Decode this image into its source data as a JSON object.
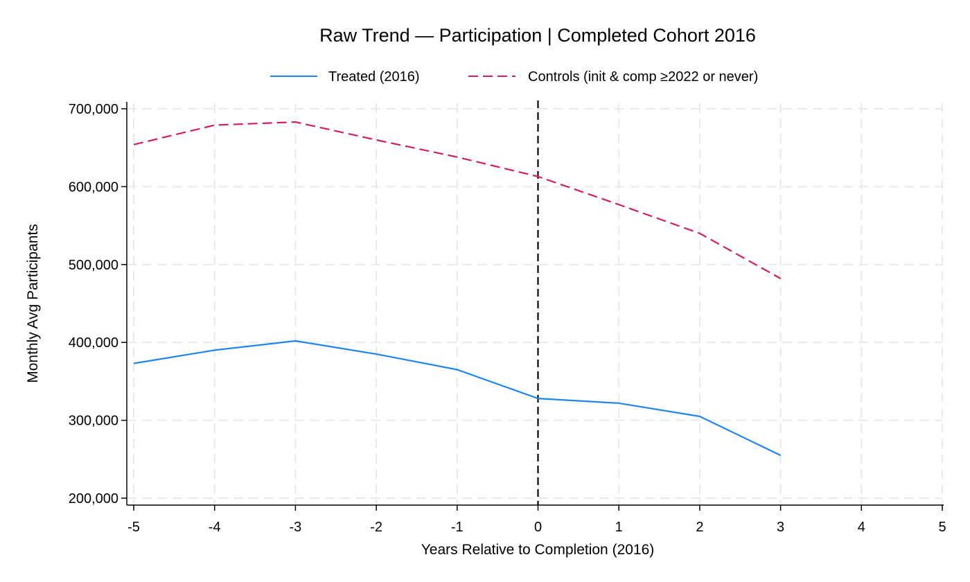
{
  "chart_data": {
    "type": "line",
    "title": "Raw Trend — Participation | Completed Cohort 2016",
    "xlabel": "Years Relative to Completion (2016)",
    "ylabel": "Monthly Avg Participants",
    "xlim": [
      -5,
      5
    ],
    "ylim": [
      200000,
      700000
    ],
    "x_ticks": [
      -5,
      -4,
      -3,
      -2,
      -1,
      0,
      1,
      2,
      3,
      4,
      5
    ],
    "x_tick_labels": [
      "-5",
      "-4",
      "-3",
      "-2",
      "-1",
      "0",
      "1",
      "2",
      "3",
      "4",
      "5"
    ],
    "y_ticks": [
      200000,
      300000,
      400000,
      500000,
      600000,
      700000
    ],
    "y_tick_labels": [
      "200,000",
      "300,000",
      "400,000",
      "500,000",
      "600,000",
      "700,000"
    ],
    "grid": true,
    "legend_position": "top-center",
    "reference_line_x": 0,
    "series": [
      {
        "name": "Treated (2016)",
        "color": "#1f84ec",
        "style": "solid",
        "x": [
          -5,
          -4,
          -3,
          -2,
          -1,
          0,
          1,
          2,
          3
        ],
        "values": [
          373000,
          390000,
          402000,
          385000,
          365000,
          328000,
          322000,
          305000,
          255000
        ]
      },
      {
        "name": "Controls (init & comp ≥2022 or never)",
        "color": "#d21e5a",
        "style": "dashed",
        "x": [
          -5,
          -4,
          -3,
          -2,
          -1,
          0,
          1,
          2,
          3
        ],
        "values": [
          654000,
          679000,
          683000,
          660000,
          638000,
          613000,
          577000,
          540000,
          482000
        ]
      }
    ]
  }
}
